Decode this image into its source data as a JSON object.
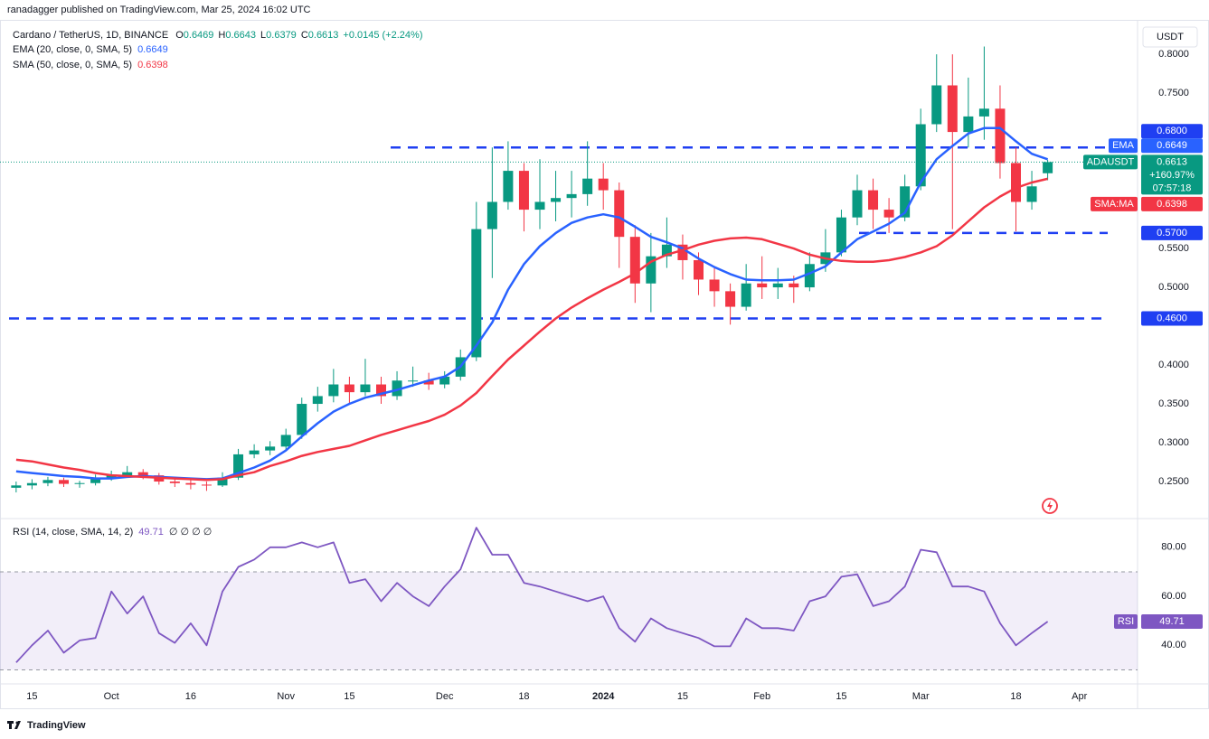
{
  "header": "ranadagger published on TradingView.com, Mar 25, 2024 16:02 UTC",
  "footer": "TradingView",
  "chart_data": [
    {
      "type": "candlestick",
      "title": "Cardano / TetherUS, 1D, BINANCE",
      "legend_labels": {
        "open": "O",
        "high": "H",
        "low": "L",
        "close": "C"
      },
      "change": "+0.0145 (+2.24%)",
      "currency": "USDT",
      "symbol": "ADAUSDT",
      "percent_change": "+160.97%",
      "countdown": "07:57:18",
      "categories": [
        null,
        "15",
        null,
        null,
        null,
        null,
        "Oct",
        null,
        null,
        null,
        null,
        "16",
        null,
        null,
        null,
        null,
        null,
        "Nov",
        null,
        null,
        null,
        "15",
        null,
        null,
        null,
        null,
        null,
        "Dec",
        null,
        null,
        null,
        null,
        "18",
        null,
        null,
        null,
        null,
        "2024",
        null,
        null,
        null,
        null,
        "15",
        null,
        null,
        null,
        null,
        "Feb",
        null,
        null,
        null,
        null,
        "15",
        null,
        null,
        null,
        null,
        "Mar",
        null,
        null,
        null,
        null,
        null,
        "18",
        null,
        null,
        null,
        "Apr",
        null,
        null
      ],
      "open": [
        0.242,
        0.245,
        0.248,
        0.252,
        0.247,
        0.248,
        0.255,
        0.258,
        0.262,
        0.258,
        0.25,
        0.248,
        0.246,
        0.245,
        0.255,
        0.285,
        0.29,
        0.295,
        0.31,
        0.35,
        0.36,
        0.375,
        0.365,
        0.375,
        0.36,
        0.38,
        0.38,
        0.375,
        0.385,
        0.41,
        0.575,
        0.61,
        0.65,
        0.6,
        0.61,
        0.615,
        0.62,
        0.64,
        0.625,
        0.565,
        0.505,
        0.54,
        0.555,
        0.535,
        0.51,
        0.495,
        0.475,
        0.505,
        0.5,
        0.505,
        0.5,
        0.53,
        0.545,
        0.59,
        0.625,
        0.6,
        0.59,
        0.63,
        0.71,
        0.76,
        0.7,
        0.72,
        0.73,
        0.66,
        0.61,
        0.6469,
        null,
        null,
        null,
        null
      ],
      "high": [
        0.25,
        0.253,
        0.256,
        0.255,
        0.251,
        0.259,
        0.264,
        0.27,
        0.266,
        0.261,
        0.254,
        0.252,
        0.25,
        0.262,
        0.292,
        0.298,
        0.302,
        0.318,
        0.358,
        0.372,
        0.395,
        0.385,
        0.408,
        0.385,
        0.392,
        0.398,
        0.39,
        0.392,
        0.42,
        0.61,
        0.68,
        0.688,
        0.66,
        0.665,
        0.65,
        0.65,
        0.688,
        0.66,
        0.635,
        0.58,
        0.57,
        0.59,
        0.568,
        0.545,
        0.525,
        0.505,
        0.53,
        0.54,
        0.525,
        0.515,
        0.545,
        0.575,
        0.6,
        0.645,
        0.64,
        0.615,
        0.645,
        0.73,
        0.8,
        0.8,
        0.77,
        0.81,
        0.76,
        0.68,
        0.65,
        0.6643,
        null,
        null,
        null,
        null
      ],
      "low": [
        0.236,
        0.24,
        0.244,
        0.243,
        0.242,
        0.245,
        0.251,
        0.255,
        0.253,
        0.246,
        0.243,
        0.24,
        0.238,
        0.243,
        0.252,
        0.28,
        0.284,
        0.29,
        0.305,
        0.34,
        0.352,
        0.35,
        0.36,
        0.35,
        0.355,
        0.372,
        0.368,
        0.37,
        0.38,
        0.405,
        0.512,
        0.6,
        0.572,
        0.575,
        0.585,
        0.59,
        0.605,
        0.6,
        0.525,
        0.48,
        0.468,
        0.525,
        0.51,
        0.49,
        0.475,
        0.452,
        0.47,
        0.485,
        0.485,
        0.48,
        0.495,
        0.52,
        0.54,
        0.58,
        0.575,
        0.57,
        0.585,
        0.625,
        0.7,
        0.575,
        0.68,
        0.69,
        0.64,
        0.572,
        0.6,
        0.6379,
        null,
        null,
        null,
        null
      ],
      "close": [
        0.245,
        0.248,
        0.252,
        0.247,
        0.248,
        0.255,
        0.258,
        0.262,
        0.258,
        0.25,
        0.248,
        0.246,
        0.245,
        0.255,
        0.285,
        0.29,
        0.295,
        0.31,
        0.35,
        0.36,
        0.375,
        0.365,
        0.375,
        0.36,
        0.38,
        0.38,
        0.375,
        0.385,
        0.41,
        0.575,
        0.61,
        0.65,
        0.6,
        0.61,
        0.615,
        0.62,
        0.64,
        0.625,
        0.565,
        0.505,
        0.54,
        0.555,
        0.535,
        0.51,
        0.495,
        0.475,
        0.505,
        0.5,
        0.505,
        0.5,
        0.53,
        0.545,
        0.59,
        0.625,
        0.6,
        0.59,
        0.63,
        0.71,
        0.76,
        0.7,
        0.72,
        0.73,
        0.66,
        0.61,
        0.63,
        0.6613,
        null,
        null,
        null,
        null
      ],
      "up_color": "#089981",
      "down_color": "#f23645",
      "ylim": [
        0.2035,
        0.842
      ],
      "yticks": [
        {
          "value": 0.25,
          "label": "0.2500"
        },
        {
          "value": 0.3,
          "label": "0.3000"
        },
        {
          "value": 0.35,
          "label": "0.3500"
        },
        {
          "value": 0.4,
          "label": "0.4000"
        },
        {
          "value": 0.5,
          "label": "0.5000"
        },
        {
          "value": 0.55,
          "label": "0.5500"
        },
        {
          "value": 0.75,
          "label": "0.7500"
        },
        {
          "value": 0.8,
          "label": "0.8000"
        }
      ],
      "series": [
        {
          "name": "EMA (20, close, 0, SMA, 5)",
          "tag": "EMA",
          "color": "#2962ff",
          "values": [
            0.263,
            0.261,
            0.259,
            0.257,
            0.256,
            0.254,
            0.254,
            0.256,
            0.257,
            0.256,
            0.255,
            0.254,
            0.253,
            0.254,
            0.261,
            0.268,
            0.277,
            0.29,
            0.308,
            0.325,
            0.34,
            0.35,
            0.358,
            0.363,
            0.368,
            0.374,
            0.38,
            0.385,
            0.398,
            0.425,
            0.455,
            0.497,
            0.53,
            0.553,
            0.57,
            0.583,
            0.59,
            0.594,
            0.59,
            0.578,
            0.565,
            0.558,
            0.55,
            0.537,
            0.526,
            0.517,
            0.51,
            0.509,
            0.509,
            0.51,
            0.518,
            0.527,
            0.545,
            0.562,
            0.572,
            0.582,
            0.596,
            0.635,
            0.665,
            0.682,
            0.698,
            0.705,
            0.705,
            0.688,
            0.672,
            0.6649,
            null,
            null,
            null,
            null
          ]
        },
        {
          "name": "SMA (50, close, 0, SMA, 5)",
          "tag": "SMA:MA",
          "color": "#f23645",
          "values": [
            0.278,
            0.276,
            0.272,
            0.268,
            0.265,
            0.261,
            0.258,
            0.257,
            0.256,
            0.255,
            0.254,
            0.253,
            0.252,
            0.253,
            0.258,
            0.262,
            0.27,
            0.276,
            0.283,
            0.288,
            0.292,
            0.296,
            0.303,
            0.31,
            0.316,
            0.322,
            0.328,
            0.336,
            0.348,
            0.364,
            0.386,
            0.407,
            0.425,
            0.443,
            0.46,
            0.474,
            0.486,
            0.497,
            0.507,
            0.518,
            0.533,
            0.542,
            0.548,
            0.555,
            0.56,
            0.563,
            0.564,
            0.562,
            0.556,
            0.55,
            0.542,
            0.537,
            0.534,
            0.533,
            0.533,
            0.535,
            0.539,
            0.545,
            0.553,
            0.567,
            0.585,
            0.603,
            0.617,
            0.628,
            0.635,
            0.6398,
            null,
            null,
            null,
            null
          ]
        }
      ],
      "levels": [
        {
          "value": 0.68,
          "label": "0.6800"
        },
        {
          "value": 0.57,
          "label": "0.5700"
        },
        {
          "value": 0.46,
          "label": "0.4600"
        }
      ],
      "level_color": "#1f3ff2"
    },
    {
      "type": "line",
      "title": "RSI (14, close, SMA, 14, 2)",
      "extra": "∅ ∅ ∅ ∅",
      "tag": "RSI",
      "color": "#7e57c2",
      "values": [
        33,
        40,
        46,
        37,
        42,
        43,
        62,
        53,
        60,
        45,
        41,
        49,
        40,
        62,
        72,
        75,
        80,
        80,
        82,
        80,
        82,
        65.5,
        67,
        58,
        65.5,
        60,
        56,
        64,
        71,
        88,
        77,
        77,
        65.5,
        64,
        62,
        60,
        58,
        60,
        47,
        41.5,
        51,
        47,
        45,
        43,
        39.6,
        39.6,
        51,
        47,
        47,
        46,
        58,
        60,
        68,
        69,
        56,
        58,
        64,
        79,
        78,
        64,
        64,
        62,
        49,
        40,
        45,
        49.71,
        null,
        null,
        null,
        null
      ],
      "ylim": [
        25,
        91
      ],
      "yticks": [
        {
          "value": 40,
          "label": "40.00"
        },
        {
          "value": 60,
          "label": "60.00"
        },
        {
          "value": 80,
          "label": "80.00"
        }
      ],
      "bands": [
        30,
        70
      ]
    }
  ]
}
